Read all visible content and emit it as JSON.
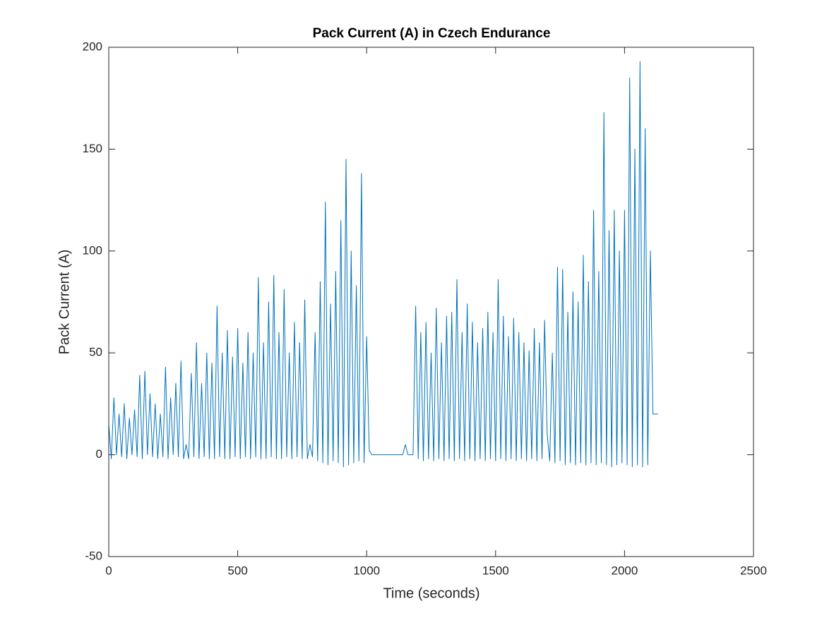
{
  "chart_data": {
    "type": "line",
    "title": "Pack Current (A) in Czech Endurance",
    "x_label": "Time (seconds)",
    "y_label": "Pack Current (A)",
    "xlim": [
      0,
      2500
    ],
    "xticks": [
      0,
      500,
      1000,
      1500,
      2000,
      2500
    ],
    "ylim": [
      -50,
      200
    ],
    "yticks": [
      -50,
      0,
      50,
      100,
      150,
      200
    ],
    "x": [
      0,
      10,
      20,
      30,
      40,
      50,
      60,
      70,
      80,
      90,
      100,
      110,
      120,
      130,
      140,
      150,
      160,
      170,
      180,
      190,
      200,
      210,
      220,
      230,
      240,
      250,
      260,
      270,
      280,
      290,
      300,
      310,
      320,
      330,
      340,
      350,
      360,
      370,
      380,
      390,
      400,
      410,
      420,
      430,
      440,
      450,
      460,
      470,
      480,
      490,
      500,
      510,
      520,
      530,
      540,
      550,
      560,
      570,
      580,
      590,
      600,
      610,
      620,
      630,
      640,
      650,
      660,
      670,
      680,
      690,
      700,
      710,
      720,
      730,
      740,
      750,
      760,
      770,
      780,
      790,
      800,
      810,
      820,
      830,
      840,
      850,
      860,
      870,
      880,
      890,
      900,
      910,
      920,
      930,
      940,
      950,
      960,
      970,
      980,
      990,
      1000,
      1010,
      1020,
      1030,
      1040,
      1050,
      1060,
      1070,
      1080,
      1090,
      1100,
      1110,
      1120,
      1130,
      1140,
      1150,
      1160,
      1170,
      1180,
      1190,
      1200,
      1210,
      1220,
      1230,
      1240,
      1250,
      1260,
      1270,
      1280,
      1290,
      1300,
      1310,
      1320,
      1330,
      1340,
      1350,
      1360,
      1370,
      1380,
      1390,
      1400,
      1410,
      1420,
      1430,
      1440,
      1450,
      1460,
      1470,
      1480,
      1490,
      1500,
      1510,
      1520,
      1530,
      1540,
      1550,
      1560,
      1570,
      1580,
      1590,
      1600,
      1610,
      1620,
      1630,
      1640,
      1650,
      1660,
      1670,
      1680,
      1690,
      1700,
      1710,
      1720,
      1730,
      1740,
      1750,
      1760,
      1770,
      1780,
      1790,
      1800,
      1810,
      1820,
      1830,
      1840,
      1850,
      1860,
      1870,
      1880,
      1890,
      1900,
      1910,
      1920,
      1930,
      1940,
      1950,
      1960,
      1970,
      1980,
      1990,
      2000,
      2010,
      2020,
      2030,
      2040,
      2050,
      2060,
      2070,
      2080,
      2090,
      2100,
      2110,
      2120,
      2130
    ],
    "series": [
      {
        "color": "#0072BD",
        "values": [
          15,
          -2,
          28,
          0,
          20,
          -1,
          25,
          -2,
          18,
          0,
          22,
          -1,
          39,
          -2,
          41,
          0,
          30,
          -1,
          25,
          -2,
          20,
          -1,
          43,
          -2,
          28,
          0,
          35,
          -1,
          46,
          -2,
          5,
          -2,
          40,
          -1,
          55,
          -2,
          35,
          -1,
          50,
          -2,
          45,
          -2,
          73,
          -1,
          50,
          -2,
          61,
          -2,
          48,
          -1,
          62,
          -2,
          45,
          -1,
          60,
          -2,
          50,
          -1,
          87,
          -2,
          55,
          -2,
          75,
          -1,
          88,
          -2,
          60,
          -2,
          81,
          -1,
          50,
          -2,
          65,
          -1,
          55,
          -2,
          76,
          -2,
          5,
          -1,
          60,
          -3,
          85,
          -4,
          124,
          -5,
          74,
          -3,
          90,
          -4,
          115,
          -6,
          145,
          -5,
          100,
          -4,
          83,
          -3,
          138,
          -4,
          58,
          2,
          0,
          0,
          0,
          0,
          0,
          0,
          0,
          0,
          0,
          0,
          0,
          0,
          0,
          5,
          0,
          0,
          0,
          73,
          -2,
          60,
          -3,
          65,
          -2,
          50,
          -3,
          72,
          -2,
          55,
          -3,
          68,
          -2,
          70,
          -3,
          86,
          -2,
          60,
          -3,
          74,
          -2,
          65,
          -3,
          55,
          -2,
          62,
          -3,
          70,
          -2,
          60,
          -3,
          86,
          -2,
          68,
          -3,
          58,
          -2,
          67,
          -3,
          60,
          -2,
          55,
          -3,
          51,
          -2,
          62,
          -3,
          55,
          -2,
          66,
          10,
          -3,
          50,
          -4,
          92,
          -3,
          91,
          -5,
          70,
          -4,
          80,
          -5,
          75,
          -4,
          98,
          -5,
          85,
          -4,
          120,
          -5,
          90,
          -4,
          168,
          -5,
          110,
          -6,
          120,
          -5,
          100,
          -4,
          120,
          -5,
          185,
          -6,
          150,
          -5,
          193,
          -6,
          160,
          -5,
          100,
          20,
          20,
          20
        ]
      }
    ]
  }
}
